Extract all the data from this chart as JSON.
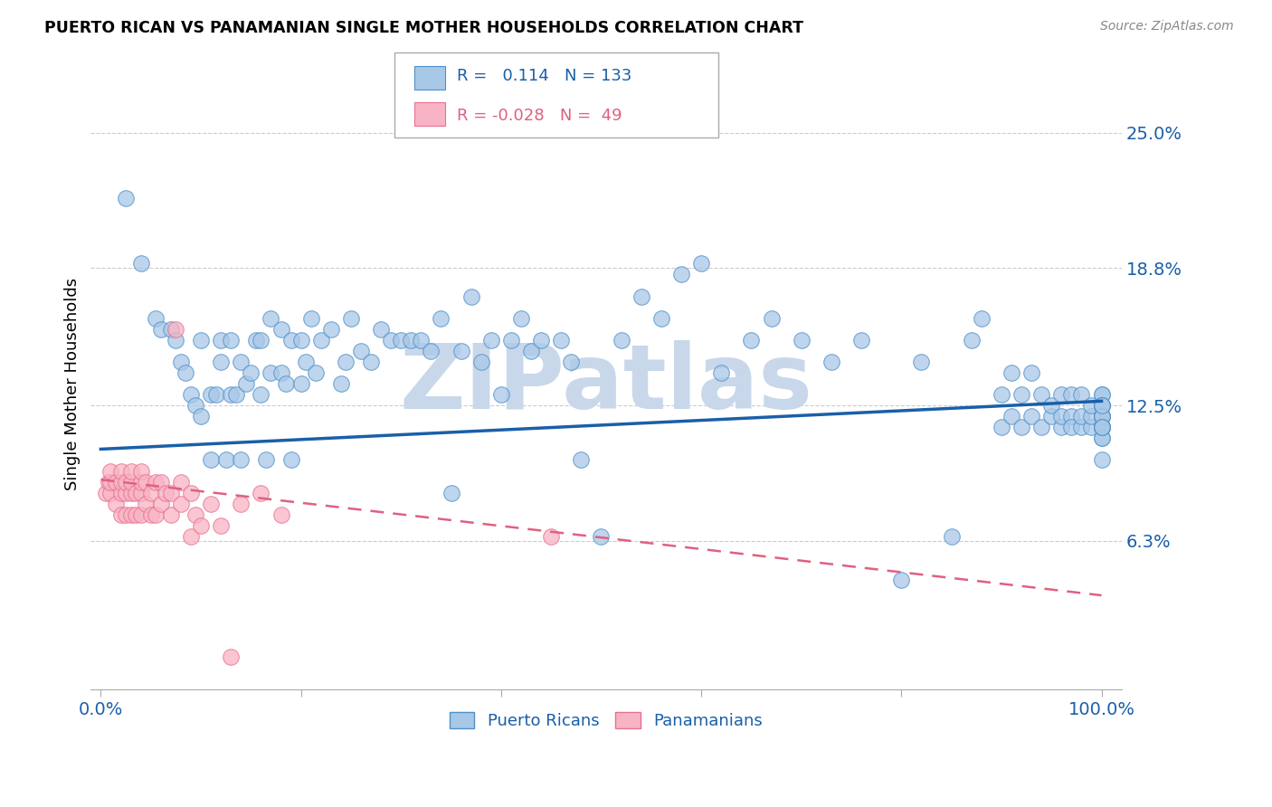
{
  "title": "PUERTO RICAN VS PANAMANIAN SINGLE MOTHER HOUSEHOLDS CORRELATION CHART",
  "source": "Source: ZipAtlas.com",
  "ylabel": "Single Mother Households",
  "ytick_vals": [
    0.063,
    0.125,
    0.188,
    0.25
  ],
  "ytick_labels": [
    "6.3%",
    "12.5%",
    "18.8%",
    "25.0%"
  ],
  "xtick_vals": [
    0.0,
    0.2,
    0.4,
    0.6,
    0.8,
    1.0
  ],
  "xtick_labels": [
    "0.0%",
    "",
    "",
    "",
    "",
    "100.0%"
  ],
  "xlim": [
    -0.01,
    1.02
  ],
  "ylim": [
    -0.005,
    0.275
  ],
  "blue_R": 0.114,
  "blue_N": 133,
  "pink_R": -0.028,
  "pink_N": 49,
  "blue_color": "#A8C8E8",
  "blue_edge_color": "#5090C8",
  "blue_line_color": "#1A5FA8",
  "pink_color": "#F8B4C4",
  "pink_edge_color": "#E87090",
  "pink_line_color": "#E06080",
  "watermark": "ZIPatlas",
  "watermark_color": "#C8D8EA",
  "legend_label_blue": "Puerto Ricans",
  "legend_label_pink": "Panamanians",
  "blue_trend_x0": 0.0,
  "blue_trend_y0": 0.105,
  "blue_trend_x1": 1.0,
  "blue_trend_y1": 0.127,
  "pink_trend_x0": 0.0,
  "pink_trend_y0": 0.091,
  "pink_trend_x1": 1.0,
  "pink_trend_y1": 0.038,
  "blue_x": [
    0.025,
    0.04,
    0.055,
    0.06,
    0.07,
    0.075,
    0.08,
    0.085,
    0.09,
    0.095,
    0.1,
    0.1,
    0.11,
    0.11,
    0.115,
    0.12,
    0.12,
    0.125,
    0.13,
    0.13,
    0.135,
    0.14,
    0.14,
    0.145,
    0.15,
    0.155,
    0.16,
    0.16,
    0.165,
    0.17,
    0.17,
    0.18,
    0.18,
    0.185,
    0.19,
    0.19,
    0.2,
    0.2,
    0.205,
    0.21,
    0.215,
    0.22,
    0.23,
    0.24,
    0.245,
    0.25,
    0.26,
    0.27,
    0.28,
    0.29,
    0.3,
    0.31,
    0.32,
    0.33,
    0.34,
    0.35,
    0.36,
    0.37,
    0.38,
    0.39,
    0.4,
    0.41,
    0.42,
    0.43,
    0.44,
    0.46,
    0.47,
    0.48,
    0.5,
    0.52,
    0.54,
    0.56,
    0.58,
    0.6,
    0.62,
    0.65,
    0.67,
    0.7,
    0.73,
    0.76,
    0.8,
    0.82,
    0.85,
    0.87,
    0.88,
    0.9,
    0.9,
    0.91,
    0.91,
    0.92,
    0.92,
    0.93,
    0.93,
    0.94,
    0.94,
    0.95,
    0.95,
    0.96,
    0.96,
    0.96,
    0.97,
    0.97,
    0.97,
    0.98,
    0.98,
    0.98,
    0.99,
    0.99,
    0.99,
    1.0,
    1.0,
    1.0,
    1.0,
    1.0,
    1.0,
    1.0,
    1.0,
    1.0,
    1.0,
    1.0,
    1.0,
    1.0,
    1.0,
    1.0,
    1.0,
    1.0,
    1.0,
    1.0,
    1.0,
    1.0,
    1.0,
    1.0,
    1.0
  ],
  "blue_y": [
    0.22,
    0.19,
    0.165,
    0.16,
    0.16,
    0.155,
    0.145,
    0.14,
    0.13,
    0.125,
    0.12,
    0.155,
    0.1,
    0.13,
    0.13,
    0.145,
    0.155,
    0.1,
    0.13,
    0.155,
    0.13,
    0.1,
    0.145,
    0.135,
    0.14,
    0.155,
    0.13,
    0.155,
    0.1,
    0.14,
    0.165,
    0.14,
    0.16,
    0.135,
    0.1,
    0.155,
    0.135,
    0.155,
    0.145,
    0.165,
    0.14,
    0.155,
    0.16,
    0.135,
    0.145,
    0.165,
    0.15,
    0.145,
    0.16,
    0.155,
    0.155,
    0.155,
    0.155,
    0.15,
    0.165,
    0.085,
    0.15,
    0.175,
    0.145,
    0.155,
    0.13,
    0.155,
    0.165,
    0.15,
    0.155,
    0.155,
    0.145,
    0.1,
    0.065,
    0.155,
    0.175,
    0.165,
    0.185,
    0.19,
    0.14,
    0.155,
    0.165,
    0.155,
    0.145,
    0.155,
    0.045,
    0.145,
    0.065,
    0.155,
    0.165,
    0.115,
    0.13,
    0.14,
    0.12,
    0.13,
    0.115,
    0.12,
    0.14,
    0.115,
    0.13,
    0.12,
    0.125,
    0.115,
    0.12,
    0.13,
    0.12,
    0.115,
    0.13,
    0.115,
    0.12,
    0.13,
    0.115,
    0.12,
    0.125,
    0.115,
    0.125,
    0.115,
    0.12,
    0.13,
    0.115,
    0.12,
    0.11,
    0.125,
    0.13,
    0.115,
    0.12,
    0.125,
    0.115,
    0.1,
    0.115,
    0.12,
    0.125,
    0.115,
    0.12,
    0.11,
    0.115,
    0.125,
    0.115
  ],
  "pink_x": [
    0.005,
    0.008,
    0.01,
    0.01,
    0.01,
    0.015,
    0.015,
    0.02,
    0.02,
    0.02,
    0.02,
    0.025,
    0.025,
    0.025,
    0.03,
    0.03,
    0.03,
    0.03,
    0.035,
    0.035,
    0.04,
    0.04,
    0.04,
    0.04,
    0.045,
    0.045,
    0.05,
    0.05,
    0.055,
    0.055,
    0.06,
    0.06,
    0.065,
    0.07,
    0.07,
    0.075,
    0.08,
    0.08,
    0.09,
    0.09,
    0.095,
    0.1,
    0.11,
    0.12,
    0.13,
    0.14,
    0.16,
    0.18,
    0.45
  ],
  "pink_y": [
    0.085,
    0.09,
    0.085,
    0.09,
    0.095,
    0.08,
    0.09,
    0.075,
    0.085,
    0.09,
    0.095,
    0.075,
    0.085,
    0.09,
    0.075,
    0.085,
    0.09,
    0.095,
    0.075,
    0.085,
    0.075,
    0.085,
    0.09,
    0.095,
    0.08,
    0.09,
    0.075,
    0.085,
    0.075,
    0.09,
    0.08,
    0.09,
    0.085,
    0.075,
    0.085,
    0.16,
    0.08,
    0.09,
    0.065,
    0.085,
    0.075,
    0.07,
    0.08,
    0.07,
    0.01,
    0.08,
    0.085,
    0.075,
    0.065
  ]
}
